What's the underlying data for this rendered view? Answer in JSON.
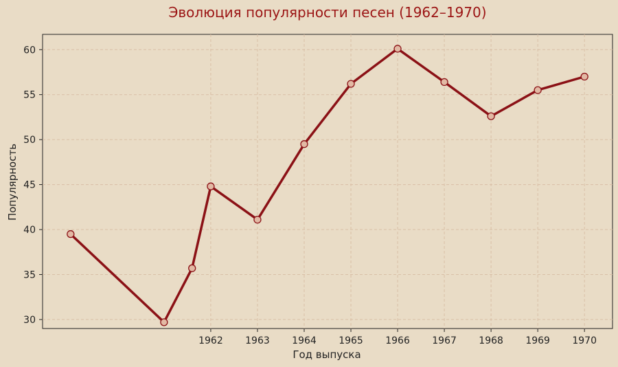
{
  "chart_data": {
    "type": "line",
    "title": "Эволюция популярности песен (1962–1970)",
    "xlabel": "Год выпуска",
    "ylabel": "Популярность",
    "x_tick_labels": [
      "1962",
      "1963",
      "1964",
      "1965",
      "1966",
      "1967",
      "1968",
      "1969",
      "1970"
    ],
    "y_tick_labels": [
      "30",
      "35",
      "40",
      "45",
      "50",
      "55",
      "60"
    ],
    "ylim": [
      29,
      61.7
    ],
    "grid": true,
    "colors": {
      "background": "#e9dcc6",
      "line": "#8b1116",
      "marker_fill": "#e2b9a4",
      "marker_edge": "#8b1116",
      "title": "#9b1414",
      "grid": "#d9bfa6"
    },
    "series": [
      {
        "x": [
          1959,
          1961,
          1961.6,
          1962,
          1963,
          1964,
          1965,
          1966,
          1967,
          1968,
          1969,
          1970
        ],
        "values": [
          39.5,
          29.7,
          35.7,
          44.8,
          41.1,
          49.5,
          56.2,
          60.1,
          56.4,
          52.6,
          55.5,
          57.0
        ]
      }
    ]
  }
}
